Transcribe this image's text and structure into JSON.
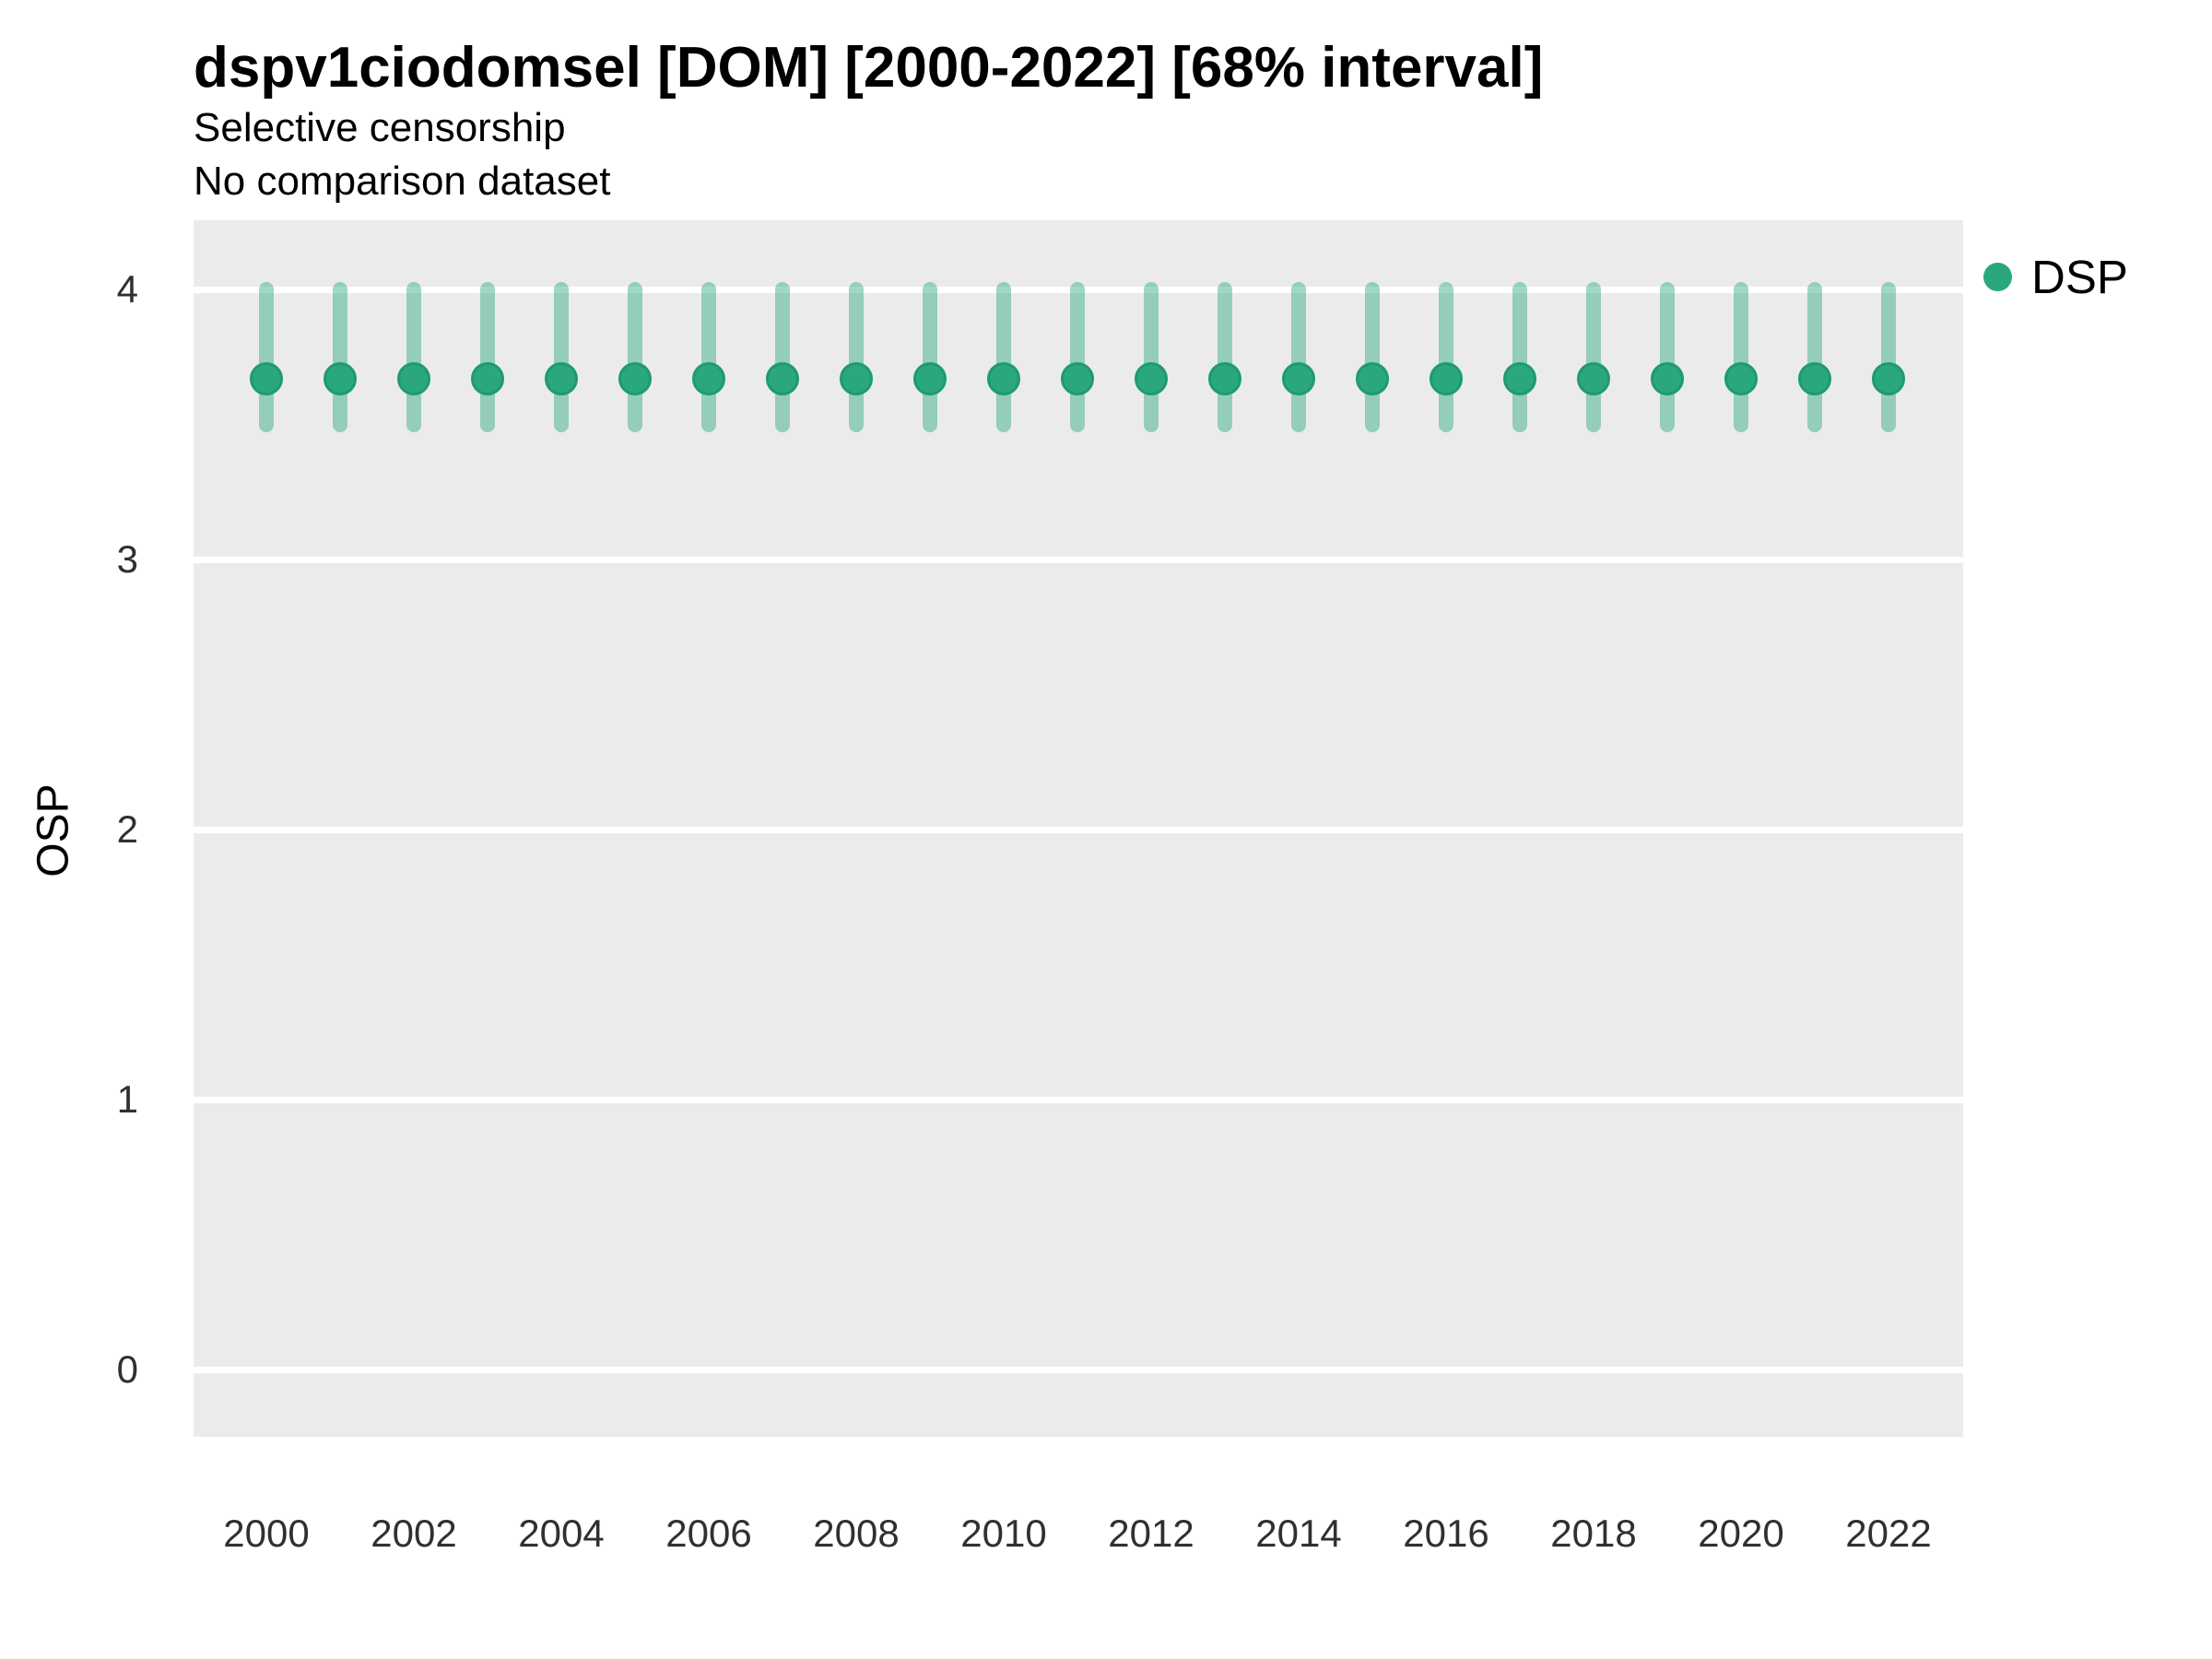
{
  "title": "dspv1ciodomsel [DOM] [2000-2022] [68% interval]",
  "subtitle": "Selective censorship",
  "subtitle2": "No comparison dataset",
  "y_axis": {
    "title": "OSP",
    "tick_labels": [
      "4",
      "3",
      "2",
      "1",
      "0"
    ]
  },
  "x_axis": {
    "title": "",
    "tick_labels": [
      "2000",
      "2002",
      "2004",
      "2006",
      "2008",
      "2010",
      "2012",
      "2014",
      "2016",
      "2018",
      "2020",
      "2022"
    ]
  },
  "legend": {
    "label": "DSP",
    "position": "top-right"
  },
  "colors": {
    "point_fill": "#2aa87c",
    "point_border": "#1d9b6f",
    "interval_bar": "rgba(42,168,124,0.45)",
    "panel_bg": "#ebebeb",
    "gridline": "#ffffff",
    "text": "#000000",
    "tick_text": "#303030"
  },
  "chart_data": {
    "type": "scatter",
    "subtype": "pointrange",
    "title": "dspv1ciodomsel [DOM] [2000-2022] [68% interval]",
    "subtitle": "Selective censorship",
    "annotation": "No comparison dataset",
    "xlabel": "",
    "ylabel": "OSP",
    "interval": "68%",
    "x": [
      2000,
      2001,
      2002,
      2003,
      2004,
      2005,
      2006,
      2007,
      2008,
      2009,
      2010,
      2011,
      2012,
      2013,
      2014,
      2015,
      2016,
      2017,
      2018,
      2019,
      2020,
      2021,
      2022
    ],
    "series": [
      {
        "name": "DSP",
        "mid": [
          3.67,
          3.67,
          3.67,
          3.67,
          3.67,
          3.67,
          3.67,
          3.67,
          3.67,
          3.67,
          3.67,
          3.67,
          3.67,
          3.67,
          3.67,
          3.67,
          3.67,
          3.67,
          3.67,
          3.67,
          3.67,
          3.67,
          3.67
        ],
        "lo": [
          3.5,
          3.5,
          3.5,
          3.5,
          3.5,
          3.5,
          3.5,
          3.5,
          3.5,
          3.5,
          3.5,
          3.5,
          3.5,
          3.5,
          3.5,
          3.5,
          3.5,
          3.5,
          3.5,
          3.5,
          3.5,
          3.5,
          3.5
        ],
        "hi": [
          4.0,
          4.0,
          4.0,
          4.0,
          4.0,
          4.0,
          4.0,
          4.0,
          4.0,
          4.0,
          4.0,
          4.0,
          4.0,
          4.0,
          4.0,
          4.0,
          4.0,
          4.0,
          4.0,
          4.0,
          4.0,
          4.0,
          4.0
        ]
      }
    ],
    "x_ticks": [
      2000,
      2002,
      2004,
      2006,
      2008,
      2010,
      2012,
      2014,
      2016,
      2018,
      2020,
      2022
    ],
    "y_ticks": [
      0,
      1,
      2,
      3,
      4
    ],
    "ylim": [
      -0.26,
      4.26
    ],
    "grid": "horizontal-major-only",
    "legend_position": "top-right"
  }
}
